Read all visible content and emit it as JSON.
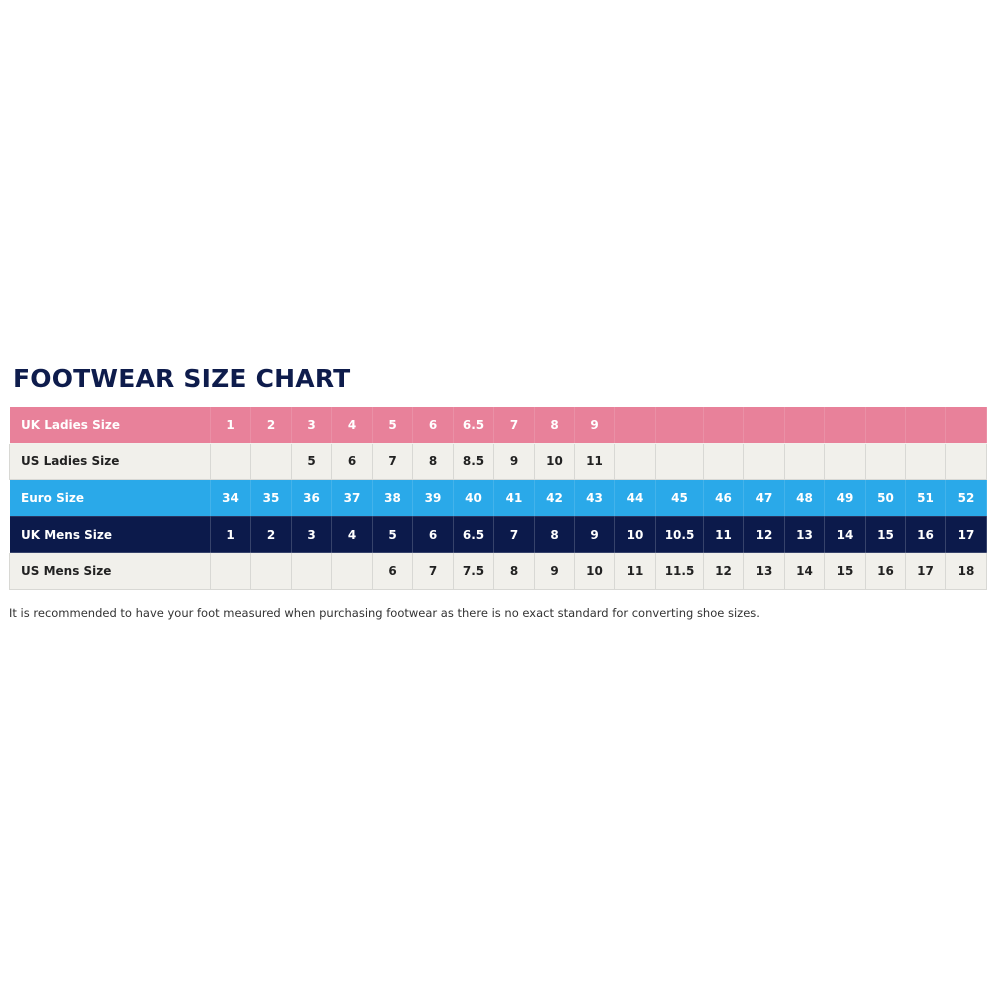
{
  "title": "FOOTWEAR SIZE CHART",
  "colors": {
    "uk_ladies": "#e8819a",
    "us_ladies": "#f1f0eb",
    "euro": "#2aa9e9",
    "uk_mens": "#0c1a4b",
    "us_mens": "#f1f0eb",
    "title": "#0e1c4c"
  },
  "rows": [
    {
      "label": "UK Ladies Size",
      "style": "pink",
      "values": [
        "1",
        "2",
        "3",
        "4",
        "5",
        "6",
        "6.5",
        "7",
        "8",
        "9",
        "",
        "",
        "",
        "",
        "",
        "",
        "",
        "",
        ""
      ]
    },
    {
      "label": "US Ladies Size",
      "style": "light",
      "values": [
        "",
        "",
        "5",
        "6",
        "7",
        "8",
        "8.5",
        "9",
        "10",
        "11",
        "",
        "",
        "",
        "",
        "",
        "",
        "",
        "",
        ""
      ]
    },
    {
      "label": "Euro Size",
      "style": "blue",
      "values": [
        "34",
        "35",
        "36",
        "37",
        "38",
        "39",
        "40",
        "41",
        "42",
        "43",
        "44",
        "45",
        "46",
        "47",
        "48",
        "49",
        "50",
        "51",
        "52"
      ]
    },
    {
      "label": "UK Mens Size",
      "style": "navy",
      "values": [
        "1",
        "2",
        "3",
        "4",
        "5",
        "6",
        "6.5",
        "7",
        "8",
        "9",
        "10",
        "10.5",
        "11",
        "12",
        "13",
        "14",
        "15",
        "16",
        "17"
      ]
    },
    {
      "label": "US Mens Size",
      "style": "light",
      "values": [
        "",
        "",
        "",
        "",
        "6",
        "7",
        "7.5",
        "8",
        "9",
        "10",
        "11",
        "11.5",
        "12",
        "13",
        "14",
        "15",
        "16",
        "17",
        "18"
      ]
    }
  ],
  "note": "It is recommended to have your foot measured when purchasing footwear as there is no exact standard for converting shoe sizes."
}
